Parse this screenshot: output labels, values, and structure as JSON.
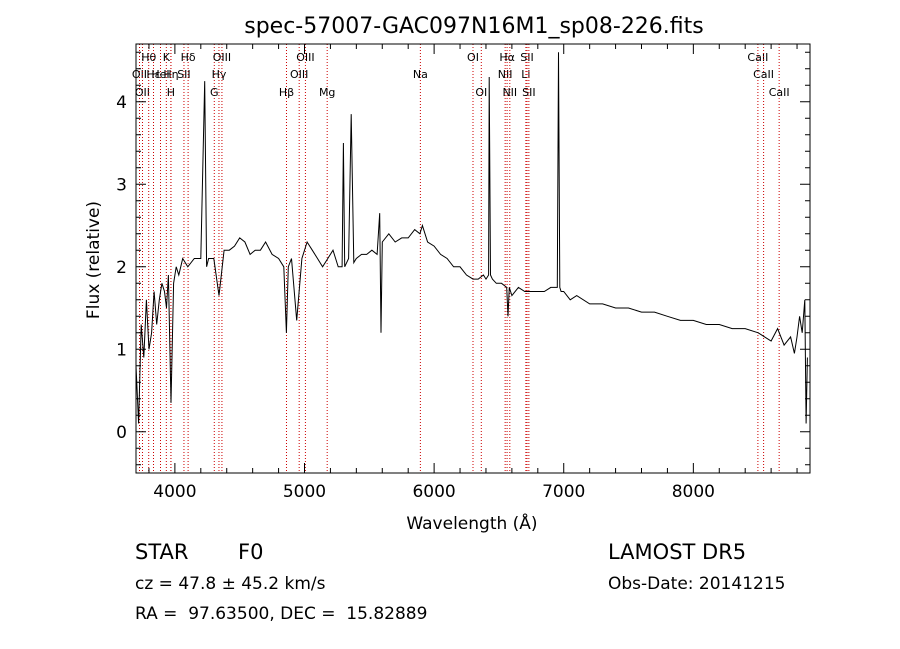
{
  "chart_data": {
    "type": "line",
    "title": "spec-57007-GAC097N16M1_sp08-226.fits",
    "xlabel": "Wavelength (Å)",
    "ylabel": "Flux (relative)",
    "xlim": [
      3700,
      8900
    ],
    "ylim": [
      -0.5,
      4.7
    ],
    "x_ticks": [
      4000,
      5000,
      6000,
      7000,
      8000
    ],
    "x_tick_labels": [
      "4000",
      "5000",
      "6000",
      "7000",
      "8000"
    ],
    "y_ticks": [
      0,
      1,
      2,
      3,
      4
    ],
    "y_tick_labels": [
      "0",
      "1",
      "2",
      "3",
      "4"
    ],
    "grid": false,
    "series": [
      {
        "color": "#000000",
        "x": [
          3700,
          3720,
          3740,
          3760,
          3780,
          3800,
          3820,
          3840,
          3860,
          3880,
          3900,
          3920,
          3935,
          3950,
          3970,
          3990,
          4010,
          4030,
          4060,
          4100,
          4150,
          4200,
          4230,
          4245,
          4260,
          4300,
          4340,
          4380,
          4420,
          4460,
          4500,
          4540,
          4580,
          4620,
          4660,
          4700,
          4750,
          4800,
          4840,
          4860,
          4875,
          4900,
          4940,
          4980,
          5020,
          5060,
          5100,
          5140,
          5180,
          5220,
          5260,
          5290,
          5300,
          5310,
          5340,
          5360,
          5380,
          5400,
          5440,
          5480,
          5520,
          5560,
          5580,
          5590,
          5600,
          5650,
          5700,
          5750,
          5800,
          5850,
          5890,
          5910,
          5950,
          6000,
          6050,
          6100,
          6150,
          6200,
          6250,
          6300,
          6340,
          6380,
          6400,
          6420,
          6425,
          6435,
          6450,
          6480,
          6520,
          6560,
          6570,
          6580,
          6600,
          6650,
          6700,
          6750,
          6800,
          6850,
          6900,
          6950,
          6960,
          6970,
          6980,
          7000,
          7050,
          7100,
          7200,
          7300,
          7400,
          7500,
          7600,
          7700,
          7800,
          7900,
          8000,
          8100,
          8200,
          8300,
          8400,
          8500,
          8550,
          8600,
          8650,
          8700,
          8750,
          8780,
          8800,
          8820,
          8840,
          8860,
          8870,
          8880
        ],
        "y": [
          0.8,
          0.1,
          1.3,
          0.9,
          1.6,
          1.0,
          1.2,
          1.7,
          1.3,
          1.6,
          1.8,
          1.7,
          1.5,
          1.9,
          0.35,
          1.8,
          2.0,
          1.9,
          2.1,
          2.0,
          2.1,
          2.1,
          4.25,
          2.0,
          2.1,
          2.1,
          1.65,
          2.2,
          2.2,
          2.25,
          2.35,
          2.3,
          2.15,
          2.2,
          2.2,
          2.3,
          2.15,
          2.1,
          2.0,
          1.2,
          2.0,
          2.1,
          1.35,
          2.1,
          2.3,
          2.2,
          2.1,
          2.0,
          2.1,
          2.2,
          2.0,
          2.0,
          3.5,
          2.0,
          2.1,
          3.85,
          2.05,
          2.1,
          2.15,
          2.15,
          2.2,
          2.15,
          2.65,
          1.2,
          2.3,
          2.4,
          2.3,
          2.35,
          2.35,
          2.45,
          2.4,
          2.5,
          2.3,
          2.25,
          2.15,
          2.1,
          2.0,
          2.0,
          1.9,
          1.85,
          1.85,
          1.9,
          1.85,
          1.9,
          4.3,
          1.9,
          1.85,
          1.8,
          1.8,
          1.75,
          1.4,
          1.75,
          1.65,
          1.75,
          1.7,
          1.7,
          1.7,
          1.7,
          1.75,
          1.75,
          4.6,
          1.75,
          1.7,
          1.7,
          1.6,
          1.65,
          1.55,
          1.55,
          1.5,
          1.5,
          1.45,
          1.45,
          1.4,
          1.35,
          1.35,
          1.3,
          1.3,
          1.25,
          1.25,
          1.2,
          1.15,
          1.1,
          1.25,
          1.05,
          1.15,
          0.95,
          1.15,
          1.4,
          1.2,
          1.6,
          0.1,
          0.9
        ]
      }
    ],
    "line_marks": [
      {
        "x": 3727,
        "label": "OII",
        "row": 2
      },
      {
        "x": 3750,
        "label": "OII",
        "row": 3
      },
      {
        "x": 3798,
        "label": "Hθ",
        "row": 1
      },
      {
        "x": 3835,
        "label": "Hε",
        "row": 2
      },
      {
        "x": 3889,
        "label": "HeI",
        "row": 2
      },
      {
        "x": 3934,
        "label": "K",
        "row": 1
      },
      {
        "x": 3970,
        "label": "Hη",
        "row": 2
      },
      {
        "x": 3969,
        "label": "H",
        "row": 3
      },
      {
        "x": 4070,
        "label": "SII",
        "row": 2
      },
      {
        "x": 4102,
        "label": "Hδ",
        "row": 1
      },
      {
        "x": 4304,
        "label": "G",
        "row": 3
      },
      {
        "x": 4340,
        "label": "Hγ",
        "row": 2
      },
      {
        "x": 4363,
        "label": "OIII",
        "row": 1
      },
      {
        "x": 4861,
        "label": "Hβ",
        "row": 3
      },
      {
        "x": 4959,
        "label": "OIII",
        "row": 2
      },
      {
        "x": 5007,
        "label": "OIII",
        "row": 1
      },
      {
        "x": 5175,
        "label": "Mg",
        "row": 3
      },
      {
        "x": 5894,
        "label": "Na",
        "row": 2
      },
      {
        "x": 6300,
        "label": "OI",
        "row": 1
      },
      {
        "x": 6364,
        "label": "OI",
        "row": 3
      },
      {
        "x": 6548,
        "label": "NII",
        "row": 2
      },
      {
        "x": 6563,
        "label": "Hα",
        "row": 1
      },
      {
        "x": 6584,
        "label": "NII",
        "row": 3
      },
      {
        "x": 6708,
        "label": "Li",
        "row": 2
      },
      {
        "x": 6717,
        "label": "SII",
        "row": 1
      },
      {
        "x": 6731,
        "label": "SII",
        "row": 3
      },
      {
        "x": 8498,
        "label": "CaII",
        "row": 1
      },
      {
        "x": 8542,
        "label": "CaII",
        "row": 2
      },
      {
        "x": 8662,
        "label": "CaII",
        "row": 3
      }
    ],
    "colors": {
      "spectrum": "#000000",
      "line_marks": "#cc0000",
      "axes": "#000000",
      "background": "#ffffff"
    }
  },
  "info": {
    "classification": "STAR",
    "subclass": "F0",
    "survey": "LAMOST DR5",
    "redshift": "cz = 47.8 ± 45.2 km/s",
    "obs_date": "Obs-Date: 20141215",
    "coords": "RA =  97.63500, DEC =  15.82889"
  }
}
